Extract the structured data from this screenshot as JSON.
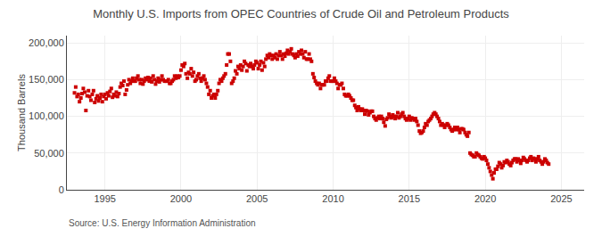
{
  "chart_data": {
    "type": "scatter",
    "title": "Monthly U.S. Imports from OPEC Countries of Crude Oil and Petroleum Products",
    "ylabel": "Thousand Barrels",
    "annotation": "Source: U.S. Energy Information Administration",
    "color": "#cc0000",
    "marker": "square",
    "grid": true,
    "xlim": [
      1992.5,
      2026.5
    ],
    "xticks": [
      1995,
      2000,
      2005,
      2010,
      2015,
      2020,
      2025
    ],
    "ylim": [
      0,
      210000
    ],
    "yticks": [
      0,
      {
        "value": 50000,
        "label": "50,000"
      },
      {
        "value": 100000,
        "label": "100,000"
      },
      {
        "value": 150000,
        "label": "150,000"
      },
      {
        "value": 200000,
        "label": "200,000"
      }
    ],
    "x": [
      1993.0,
      1993.08,
      1993.17,
      1993.25,
      1993.33,
      1993.42,
      1993.5,
      1993.58,
      1993.67,
      1993.75,
      1993.83,
      1993.92,
      1994.0,
      1994.08,
      1994.17,
      1994.25,
      1994.33,
      1994.42,
      1994.5,
      1994.58,
      1994.67,
      1994.75,
      1994.83,
      1994.92,
      1995.0,
      1995.08,
      1995.17,
      1995.25,
      1995.33,
      1995.42,
      1995.5,
      1995.58,
      1995.67,
      1995.75,
      1995.83,
      1995.92,
      1996.0,
      1996.08,
      1996.17,
      1996.25,
      1996.33,
      1996.42,
      1996.5,
      1996.58,
      1996.67,
      1996.75,
      1996.83,
      1996.92,
      1997.0,
      1997.08,
      1997.17,
      1997.25,
      1997.33,
      1997.42,
      1997.5,
      1997.58,
      1997.67,
      1997.75,
      1997.83,
      1997.92,
      1998.0,
      1998.08,
      1998.17,
      1998.25,
      1998.33,
      1998.42,
      1998.5,
      1998.58,
      1998.67,
      1998.75,
      1998.83,
      1998.92,
      1999.0,
      1999.08,
      1999.17,
      1999.25,
      1999.33,
      1999.42,
      1999.5,
      1999.58,
      1999.67,
      1999.75,
      1999.83,
      1999.92,
      2000.0,
      2000.08,
      2000.17,
      2000.25,
      2000.33,
      2000.42,
      2000.5,
      2000.58,
      2000.67,
      2000.75,
      2000.83,
      2000.92,
      2001.0,
      2001.08,
      2001.17,
      2001.25,
      2001.33,
      2001.42,
      2001.5,
      2001.58,
      2001.67,
      2001.75,
      2001.83,
      2001.92,
      2002.0,
      2002.08,
      2002.17,
      2002.25,
      2002.33,
      2002.42,
      2002.5,
      2002.58,
      2002.67,
      2002.75,
      2002.83,
      2002.92,
      2003.0,
      2003.08,
      2003.17,
      2003.25,
      2003.33,
      2003.42,
      2003.5,
      2003.58,
      2003.67,
      2003.75,
      2003.83,
      2003.92,
      2004.0,
      2004.08,
      2004.17,
      2004.25,
      2004.33,
      2004.42,
      2004.5,
      2004.58,
      2004.67,
      2004.75,
      2004.83,
      2004.92,
      2005.0,
      2005.08,
      2005.17,
      2005.25,
      2005.33,
      2005.42,
      2005.5,
      2005.58,
      2005.67,
      2005.75,
      2005.83,
      2005.92,
      2006.0,
      2006.08,
      2006.17,
      2006.25,
      2006.33,
      2006.42,
      2006.5,
      2006.58,
      2006.67,
      2006.75,
      2006.83,
      2006.92,
      2007.0,
      2007.08,
      2007.17,
      2007.25,
      2007.33,
      2007.42,
      2007.5,
      2007.58,
      2007.67,
      2007.75,
      2007.83,
      2007.92,
      2008.0,
      2008.08,
      2008.17,
      2008.25,
      2008.33,
      2008.42,
      2008.5,
      2008.58,
      2008.67,
      2008.75,
      2008.83,
      2008.92,
      2009.0,
      2009.08,
      2009.17,
      2009.25,
      2009.33,
      2009.42,
      2009.5,
      2009.58,
      2009.67,
      2009.75,
      2009.83,
      2009.92,
      2010.0,
      2010.08,
      2010.17,
      2010.25,
      2010.33,
      2010.42,
      2010.5,
      2010.58,
      2010.67,
      2010.75,
      2010.83,
      2010.92,
      2011.0,
      2011.08,
      2011.17,
      2011.25,
      2011.33,
      2011.42,
      2011.5,
      2011.58,
      2011.67,
      2011.75,
      2011.83,
      2011.92,
      2012.0,
      2012.08,
      2012.17,
      2012.25,
      2012.33,
      2012.42,
      2012.5,
      2012.58,
      2012.67,
      2012.75,
      2012.83,
      2012.92,
      2013.0,
      2013.08,
      2013.17,
      2013.25,
      2013.33,
      2013.42,
      2013.5,
      2013.58,
      2013.67,
      2013.75,
      2013.83,
      2013.92,
      2014.0,
      2014.08,
      2014.17,
      2014.25,
      2014.33,
      2014.42,
      2014.5,
      2014.58,
      2014.67,
      2014.75,
      2014.83,
      2014.92,
      2015.0,
      2015.08,
      2015.17,
      2015.25,
      2015.33,
      2015.42,
      2015.5,
      2015.58,
      2015.67,
      2015.75,
      2015.83,
      2015.92,
      2016.0,
      2016.08,
      2016.17,
      2016.25,
      2016.33,
      2016.42,
      2016.5,
      2016.58,
      2016.67,
      2016.75,
      2016.83,
      2016.92,
      2017.0,
      2017.08,
      2017.17,
      2017.25,
      2017.33,
      2017.42,
      2017.5,
      2017.58,
      2017.67,
      2017.75,
      2017.83,
      2017.92,
      2018.0,
      2018.08,
      2018.17,
      2018.25,
      2018.33,
      2018.42,
      2018.5,
      2018.58,
      2018.67,
      2018.75,
      2018.83,
      2018.92,
      2019.0,
      2019.08,
      2019.17,
      2019.25,
      2019.33,
      2019.42,
      2019.5,
      2019.58,
      2019.67,
      2019.75,
      2019.83,
      2019.92,
      2020.0,
      2020.08,
      2020.17,
      2020.25,
      2020.33,
      2020.42,
      2020.5,
      2020.58,
      2020.67,
      2020.75,
      2020.83,
      2020.92,
      2021.0,
      2021.08,
      2021.17,
      2021.25,
      2021.33,
      2021.42,
      2021.5,
      2021.58,
      2021.67,
      2021.75,
      2021.83,
      2021.92,
      2022.0,
      2022.08,
      2022.17,
      2022.25,
      2022.33,
      2022.42,
      2022.5,
      2022.58,
      2022.67,
      2022.75,
      2022.83,
      2022.92,
      2023.0,
      2023.08,
      2023.17,
      2023.25,
      2023.33,
      2023.42,
      2023.5,
      2023.58,
      2023.67,
      2023.75,
      2023.83,
      2023.92,
      2024.0,
      2024.08,
      2024.17
    ],
    "values": [
      132000,
      140000,
      127000,
      130000,
      120000,
      125000,
      131000,
      138000,
      133000,
      108000,
      128000,
      135000,
      127000,
      122000,
      130000,
      135000,
      119000,
      124000,
      128000,
      121000,
      125000,
      130000,
      120000,
      127000,
      130000,
      124000,
      132000,
      128000,
      134000,
      138000,
      126000,
      130000,
      128000,
      133000,
      127000,
      131000,
      140000,
      145000,
      142000,
      148000,
      130000,
      136000,
      143000,
      150000,
      145000,
      148000,
      152000,
      148000,
      148000,
      152000,
      155000,
      150000,
      145000,
      150000,
      144000,
      148000,
      152000,
      150000,
      153000,
      148000,
      152000,
      147000,
      155000,
      150000,
      144000,
      148000,
      152000,
      147000,
      150000,
      155000,
      150000,
      148000,
      148000,
      148000,
      150000,
      145000,
      145000,
      148000,
      150000,
      155000,
      152000,
      155000,
      153000,
      155000,
      163000,
      170000,
      168000,
      172000,
      158000,
      152000,
      160000,
      158000,
      165000,
      155000,
      160000,
      148000,
      150000,
      155000,
      158000,
      152000,
      148000,
      152000,
      155000,
      150000,
      145000,
      140000,
      130000,
      135000,
      125000,
      128000,
      130000,
      125000,
      130000,
      135000,
      145000,
      150000,
      148000,
      152000,
      155000,
      158000,
      170000,
      185000,
      185000,
      175000,
      145000,
      148000,
      152000,
      162000,
      158000,
      168000,
      165000,
      170000,
      163000,
      168000,
      175000,
      172000,
      162000,
      170000,
      168000,
      172000,
      168000,
      165000,
      170000,
      175000,
      173000,
      165000,
      170000,
      175000,
      163000,
      173000,
      168000,
      178000,
      183000,
      180000,
      185000,
      183000,
      178000,
      183000,
      180000,
      185000,
      178000,
      183000,
      188000,
      183000,
      178000,
      185000,
      182000,
      186000,
      190000,
      185000,
      188000,
      192000,
      185000,
      183000,
      180000,
      185000,
      182000,
      188000,
      185000,
      190000,
      185000,
      180000,
      188000,
      178000,
      178000,
      185000,
      178000,
      175000,
      158000,
      153000,
      148000,
      145000,
      143000,
      145000,
      138000,
      143000,
      143000,
      143000,
      148000,
      148000,
      152000,
      155000,
      148000,
      148000,
      148000,
      152000,
      148000,
      145000,
      138000,
      143000,
      143000,
      145000,
      138000,
      130000,
      128000,
      128000,
      130000,
      128000,
      125000,
      122000,
      122000,
      115000,
      112000,
      108000,
      113000,
      110000,
      108000,
      110000,
      108000,
      103000,
      108000,
      107000,
      102000,
      105000,
      107000,
      107000,
      100000,
      97000,
      95000,
      98000,
      100000,
      97000,
      100000,
      97000,
      92000,
      87000,
      96000,
      98000,
      103000,
      100000,
      98000,
      102000,
      100000,
      97000,
      100000,
      105000,
      98000,
      100000,
      103000,
      105000,
      100000,
      97000,
      95000,
      97000,
      100000,
      95000,
      98000,
      97000,
      95000,
      97000,
      93000,
      88000,
      80000,
      77000,
      78000,
      80000,
      85000,
      90000,
      88000,
      93000,
      95000,
      97000,
      100000,
      103000,
      105000,
      103000,
      100000,
      97000,
      93000,
      88000,
      90000,
      88000,
      85000,
      88000,
      90000,
      88000,
      85000,
      82000,
      80000,
      82000,
      85000,
      82000,
      85000,
      82000,
      78000,
      83000,
      83000,
      82000,
      78000,
      75000,
      73000,
      78000,
      50000,
      48000,
      47000,
      45000,
      45000,
      50000,
      48000,
      47000,
      45000,
      43000,
      42000,
      45000,
      43000,
      40000,
      35000,
      30000,
      25000,
      20000,
      15000,
      23000,
      28000,
      28000,
      32000,
      37000,
      35000,
      30000,
      33000,
      38000,
      37000,
      40000,
      38000,
      35000,
      33000,
      37000,
      40000,
      42000,
      42000,
      38000,
      42000,
      40000,
      36000,
      40000,
      44000,
      42000,
      40000,
      38000,
      40000,
      43000,
      45000,
      40000,
      43000,
      42000,
      38000,
      42000,
      45000,
      40000,
      38000,
      35000,
      38000,
      42000,
      40000,
      37000,
      35000
    ]
  }
}
